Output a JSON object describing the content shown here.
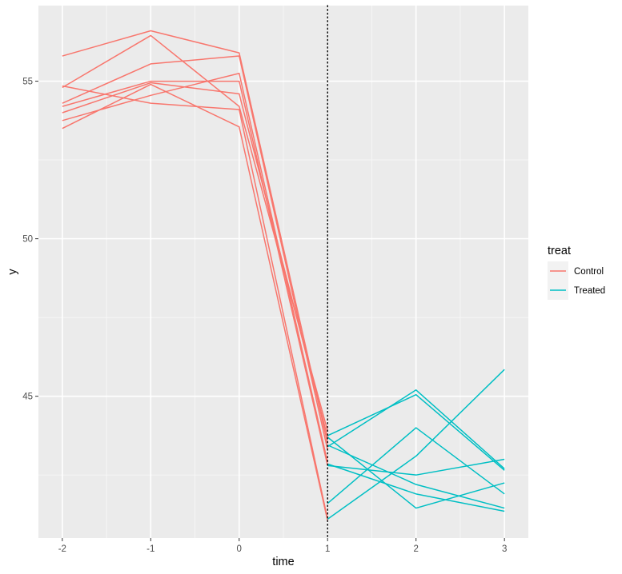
{
  "chart_data": {
    "type": "line",
    "xlabel": "time",
    "ylabel": "y",
    "x_ticks": [
      "-2",
      "-1",
      "0",
      "1",
      "2",
      "3"
    ],
    "y_ticks": [
      "45",
      "50",
      "55"
    ],
    "xlim": [
      -2.27,
      3.27
    ],
    "ylim": [
      40.5,
      57.4
    ],
    "grid": true,
    "vline": {
      "x": 1,
      "style": "dotted",
      "color": "#000000"
    },
    "legend": {
      "title": "treat",
      "placement": "right",
      "entries": [
        {
          "label": "Control",
          "color": "#F8766D"
        },
        {
          "label": "Treated",
          "color": "#00BFC4"
        }
      ]
    },
    "series": [
      {
        "group": "Control",
        "x": [
          -2,
          -1,
          0,
          1
        ],
        "y": [
          55.8,
          56.6,
          55.9,
          43.5
        ]
      },
      {
        "group": "Control",
        "x": [
          -2,
          -1,
          0,
          1
        ],
        "y": [
          54.8,
          56.45,
          54.2,
          43.9
        ]
      },
      {
        "group": "Control",
        "x": [
          -2,
          -1,
          0,
          1
        ],
        "y": [
          54.3,
          55.55,
          55.8,
          43.3
        ]
      },
      {
        "group": "Control",
        "x": [
          -2,
          -1,
          0,
          1
        ],
        "y": [
          54.2,
          55.0,
          55.0,
          42.8
        ]
      },
      {
        "group": "Control",
        "x": [
          -2,
          -1,
          0,
          1
        ],
        "y": [
          54.0,
          54.95,
          54.6,
          43.7
        ]
      },
      {
        "group": "Control",
        "x": [
          -2,
          -1,
          0,
          1
        ],
        "y": [
          53.75,
          54.55,
          55.25,
          42.9
        ]
      },
      {
        "group": "Control",
        "x": [
          -2,
          -1,
          0,
          1
        ],
        "y": [
          54.85,
          54.3,
          54.1,
          41.1
        ]
      },
      {
        "group": "Control",
        "x": [
          -2,
          -1,
          0,
          1
        ],
        "y": [
          53.5,
          54.9,
          53.55,
          41.05
        ]
      },
      {
        "group": "Treated",
        "x": [
          1,
          2,
          3
        ],
        "y": [
          43.75,
          45.05,
          42.65
        ]
      },
      {
        "group": "Treated",
        "x": [
          1,
          2,
          3
        ],
        "y": [
          43.4,
          45.2,
          42.7
        ]
      },
      {
        "group": "Treated",
        "x": [
          1,
          2,
          3
        ],
        "y": [
          41.6,
          44.0,
          41.9
        ]
      },
      {
        "group": "Treated",
        "x": [
          1,
          2,
          3
        ],
        "y": [
          43.45,
          42.2,
          41.45
        ]
      },
      {
        "group": "Treated",
        "x": [
          1,
          2,
          3
        ],
        "y": [
          42.8,
          42.5,
          43.0
        ]
      },
      {
        "group": "Treated",
        "x": [
          1,
          2,
          3
        ],
        "y": [
          42.85,
          41.9,
          41.35
        ]
      },
      {
        "group": "Treated",
        "x": [
          1,
          2,
          3
        ],
        "y": [
          43.7,
          41.45,
          42.25
        ]
      },
      {
        "group": "Treated",
        "x": [
          1,
          2,
          3
        ],
        "y": [
          41.1,
          43.1,
          45.85
        ]
      }
    ]
  }
}
